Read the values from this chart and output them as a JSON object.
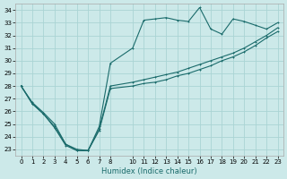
{
  "xlabel": "Humidex (Indice chaleur)",
  "xlim": [
    -0.5,
    23.5
  ],
  "ylim": [
    22.5,
    34.5
  ],
  "xtick_vals": [
    0,
    1,
    2,
    3,
    4,
    5,
    6,
    7,
    8,
    10,
    11,
    12,
    13,
    14,
    15,
    16,
    17,
    18,
    19,
    20,
    21,
    22,
    23
  ],
  "xtick_labels": [
    "0",
    "1",
    "2",
    "3",
    "4",
    "5",
    "6",
    "7",
    "8",
    "10",
    "11",
    "12",
    "13",
    "14",
    "15",
    "16",
    "17",
    "18",
    "19",
    "20",
    "21",
    "22",
    "23"
  ],
  "ytick_vals": [
    23,
    24,
    25,
    26,
    27,
    28,
    29,
    30,
    31,
    32,
    33,
    34
  ],
  "ytick_labels": [
    "23",
    "24",
    "25",
    "26",
    "27",
    "28",
    "29",
    "30",
    "31",
    "32",
    "33",
    "34"
  ],
  "bg_color": "#cce9e9",
  "grid_color": "#aad4d4",
  "line_color": "#1a6b6b",
  "line1_x": [
    0,
    1,
    2,
    3,
    4,
    5,
    6,
    7,
    8,
    10,
    11,
    12,
    13,
    14,
    15,
    16,
    17,
    18,
    19,
    20,
    21,
    22,
    23
  ],
  "line1_y": [
    28.0,
    26.6,
    25.8,
    24.7,
    23.3,
    22.9,
    22.9,
    24.5,
    27.8,
    28.0,
    28.2,
    28.3,
    28.5,
    28.8,
    29.0,
    29.3,
    29.6,
    30.0,
    30.3,
    30.7,
    31.2,
    31.8,
    32.3
  ],
  "line2_x": [
    0,
    1,
    2,
    3,
    4,
    5,
    6,
    7,
    8,
    10,
    11,
    12,
    13,
    14,
    15,
    16,
    17,
    18,
    19,
    20,
    21,
    22,
    23
  ],
  "line2_y": [
    28.0,
    26.6,
    25.8,
    24.8,
    23.4,
    22.9,
    22.9,
    24.6,
    28.0,
    28.3,
    28.5,
    28.7,
    28.9,
    29.1,
    29.4,
    29.7,
    30.0,
    30.3,
    30.6,
    31.0,
    31.5,
    32.0,
    32.6
  ],
  "line3_x": [
    0,
    1,
    2,
    3,
    4,
    5,
    6,
    7,
    8,
    10,
    11,
    12,
    13,
    14,
    15,
    16,
    17,
    18,
    19,
    20,
    21,
    22,
    23
  ],
  "line3_y": [
    28.0,
    26.7,
    25.9,
    25.0,
    23.4,
    23.0,
    22.9,
    24.8,
    29.8,
    31.0,
    33.2,
    33.3,
    33.4,
    33.2,
    33.1,
    34.2,
    32.5,
    32.1,
    33.3,
    33.1,
    32.8,
    32.5,
    33.0
  ]
}
